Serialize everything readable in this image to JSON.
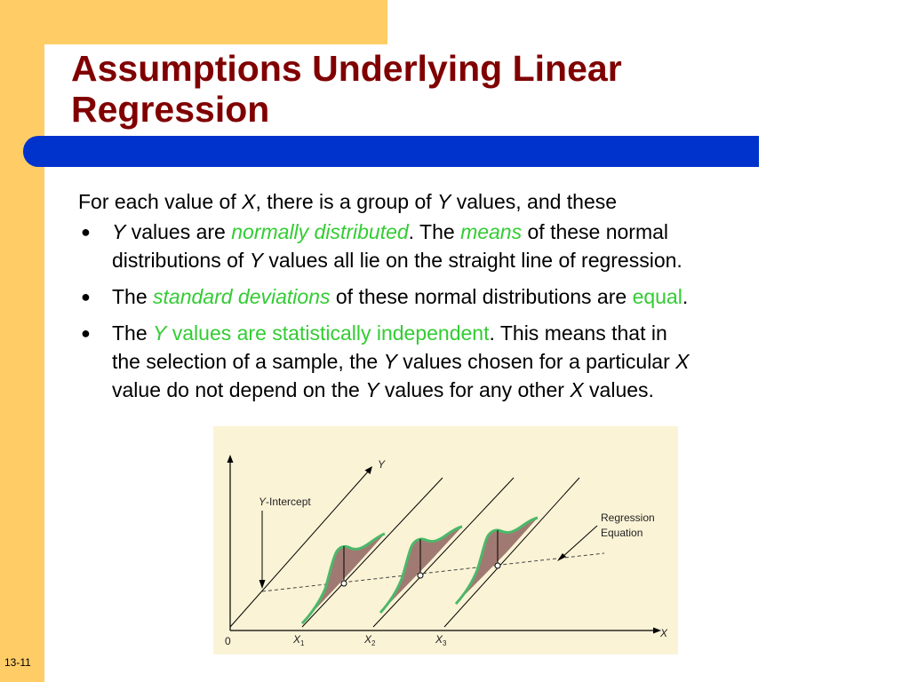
{
  "title": {
    "line1": "Assumptions Underlying Linear",
    "line2": "Regression"
  },
  "body": {
    "intro": [
      {
        "text": "For each value of ",
        "style": "normal"
      },
      {
        "text": "X",
        "style": "italic"
      },
      {
        "text": ", there is a group of ",
        "style": "normal"
      },
      {
        "text": "Y",
        "style": "italic"
      },
      {
        "text": " values, and these",
        "style": "normal"
      }
    ],
    "bullets": [
      {
        "lines": [
          [
            {
              "text": "Y",
              "style": "italic"
            },
            {
              "text": " values are ",
              "style": "normal"
            },
            {
              "text": "normally distributed",
              "style": "italic-green"
            },
            {
              "text": ". The ",
              "style": "normal"
            },
            {
              "text": "means",
              "style": "italic-green"
            },
            {
              "text": " of these normal",
              "style": "normal"
            }
          ],
          [
            {
              "text": "distributions of ",
              "style": "normal"
            },
            {
              "text": "Y",
              "style": "italic"
            },
            {
              "text": " values all lie on the straight line of regression.",
              "style": "normal"
            }
          ]
        ]
      },
      {
        "lines": [
          [
            {
              "text": "The ",
              "style": "normal"
            },
            {
              "text": "standard deviations",
              "style": "italic-green"
            },
            {
              "text": " of these normal distributions are ",
              "style": "normal"
            },
            {
              "text": "equal",
              "style": "green"
            },
            {
              "text": ".",
              "style": "normal"
            }
          ]
        ]
      },
      {
        "lines": [
          [
            {
              "text": "The ",
              "style": "normal"
            },
            {
              "text": "Y",
              "style": "italic-green"
            },
            {
              "text": " values are statistically independent",
              "style": "green"
            },
            {
              "text": ".  This means that in",
              "style": "normal"
            }
          ],
          [
            {
              "text": "the selection of a sample, the ",
              "style": "normal"
            },
            {
              "text": "Y",
              "style": "italic"
            },
            {
              "text": " values chosen for a particular ",
              "style": "normal"
            },
            {
              "text": "X",
              "style": "italic"
            }
          ],
          [
            {
              "text": "value do not depend on the ",
              "style": "normal"
            },
            {
              "text": "Y",
              "style": "italic"
            },
            {
              "text": " values for any other ",
              "style": "normal"
            },
            {
              "text": "X",
              "style": "italic"
            },
            {
              "text": " values.",
              "style": "normal"
            }
          ]
        ]
      }
    ]
  },
  "bullet_symbol": "●",
  "figure": {
    "y_axis_label": "Y",
    "x_axis_label": "X",
    "origin_label": "0",
    "y_intercept_label_italic": "Y",
    "y_intercept_label_rest": "-Intercept",
    "regression_label_line1": "Regression",
    "regression_label_line2": "Equation",
    "x_ticks": [
      {
        "main": "X",
        "sub": "1"
      },
      {
        "main": "X",
        "sub": "2"
      },
      {
        "main": "X",
        "sub": "3"
      }
    ],
    "colors": {
      "curve": "#4cb86a",
      "fill": "#a07a72",
      "background": "#fbf3d6"
    }
  },
  "slide_number": "13-11",
  "colors": {
    "title": "#800000",
    "accent_green": "#33cc33",
    "blue_bar": "#0033cc",
    "side_bar": "#ffcc66"
  }
}
